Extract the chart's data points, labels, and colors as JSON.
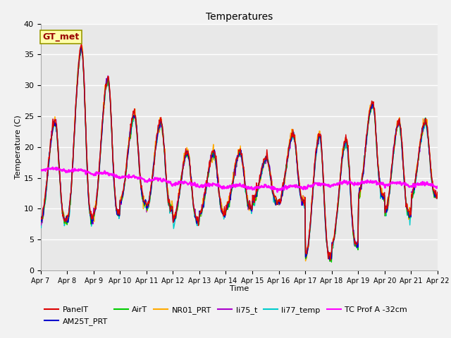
{
  "title": "Temperatures",
  "xlabel": "Time",
  "ylabel": "Temperature (C)",
  "ylim": [
    0,
    40
  ],
  "background_color": "#e8e8e8",
  "series": {
    "PanelT": {
      "color": "#dd0000",
      "lw": 1.0,
      "zorder": 3
    },
    "AM25T_PRT": {
      "color": "#0000cc",
      "lw": 1.0,
      "zorder": 3
    },
    "AirT": {
      "color": "#00cc00",
      "lw": 1.0,
      "zorder": 3
    },
    "NR01_PRT": {
      "color": "#ffaa00",
      "lw": 1.0,
      "zorder": 3
    },
    "li75_t": {
      "color": "#aa00cc",
      "lw": 1.0,
      "zorder": 3
    },
    "li77_temp": {
      "color": "#00cccc",
      "lw": 1.0,
      "zorder": 3
    },
    "TC Prof A -32cm": {
      "color": "#ff00ff",
      "lw": 1.8,
      "zorder": 4
    }
  },
  "xtick_labels": [
    "Apr 7",
    "Apr 8",
    "Apr 9",
    "Apr 10",
    "Apr 11",
    "Apr 12",
    "Apr 13",
    "Apr 14",
    "Apr 15",
    "Apr 16",
    "Apr 17",
    "Apr 18",
    "Apr 19",
    "Apr 20",
    "Apr 21",
    "Apr 22"
  ],
  "ytick_labels": [
    0,
    5,
    10,
    15,
    20,
    25,
    30,
    35,
    40
  ],
  "annotation": {
    "text": "GT_met",
    "facecolor": "#ffffaa",
    "edgecolor": "#999900",
    "textcolor": "#990000",
    "fontsize": 9
  },
  "figsize": [
    6.4,
    4.8
  ],
  "dpi": 100
}
